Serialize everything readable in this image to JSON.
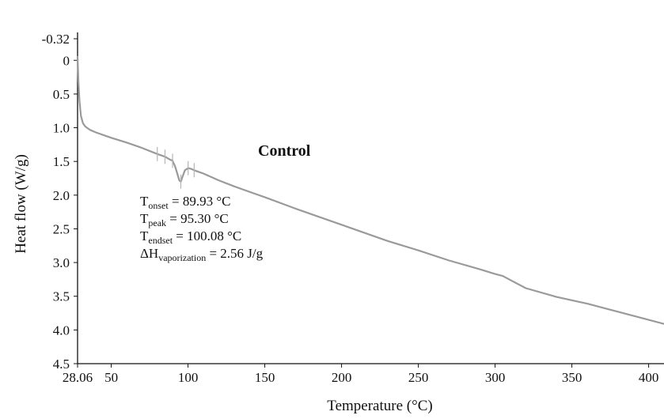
{
  "chart_data": {
    "type": "line",
    "title": "Control",
    "xlabel": "Temperature (°C)",
    "ylabel": "Heat flow (W/g)",
    "xlim": [
      28.06,
      410
    ],
    "ylim": [
      -0.32,
      4.5
    ],
    "y_inverted": true,
    "x_ticks": [
      28.06,
      50,
      100,
      150,
      200,
      250,
      300,
      350,
      400
    ],
    "x_tick_labels": [
      "28.06",
      "50",
      "100",
      "150",
      "200",
      "250",
      "300",
      "350",
      "400"
    ],
    "y_ticks": [
      -0.32,
      0,
      0.5,
      1.0,
      1.5,
      2.0,
      2.5,
      3.0,
      3.5,
      4.0,
      4.5
    ],
    "y_tick_labels": [
      "-0.32",
      "0",
      "0.5",
      "1.0",
      "1.5",
      "2.0",
      "2.5",
      "3.0",
      "3.5",
      "4.0",
      "4.5"
    ],
    "grid": false,
    "series": [
      {
        "color": "#9a9a9a",
        "x": [
          28.06,
          28.6,
          29.3,
          30.2,
          31.5,
          33,
          36,
          40,
          50,
          60,
          70,
          80,
          85,
          88,
          89.93,
          91.5,
          93,
          94.3,
          95.3,
          96.5,
          98,
          100.08,
          102,
          105,
          110,
          120,
          130,
          140,
          150,
          170,
          200,
          230,
          250,
          270,
          290,
          300,
          305,
          310,
          320,
          340,
          360,
          380,
          400,
          410
        ],
        "y": [
          -0.05,
          0.3,
          0.6,
          0.82,
          0.93,
          0.98,
          1.03,
          1.07,
          1.15,
          1.22,
          1.3,
          1.39,
          1.43,
          1.47,
          1.49,
          1.57,
          1.68,
          1.78,
          1.8,
          1.72,
          1.63,
          1.6,
          1.61,
          1.64,
          1.68,
          1.78,
          1.87,
          1.95,
          2.03,
          2.2,
          2.44,
          2.68,
          2.82,
          2.97,
          3.1,
          3.17,
          3.2,
          3.26,
          3.38,
          3.51,
          3.61,
          3.73,
          3.85,
          3.91
        ]
      }
    ],
    "annotations": [
      {
        "main": "T",
        "sub": "onset",
        "text": "= 89.93 °C"
      },
      {
        "main": "T",
        "sub": "peak",
        "text": "= 95.30 °C"
      },
      {
        "main": "T",
        "sub": "endset",
        "text": "= 100.08 °C"
      },
      {
        "main": "ΔH",
        "sub": "vaporization",
        "text": "= 2.56 J/g"
      }
    ],
    "marker_temps": [
      80,
      85,
      89.93,
      95.3,
      100.08,
      104
    ]
  }
}
